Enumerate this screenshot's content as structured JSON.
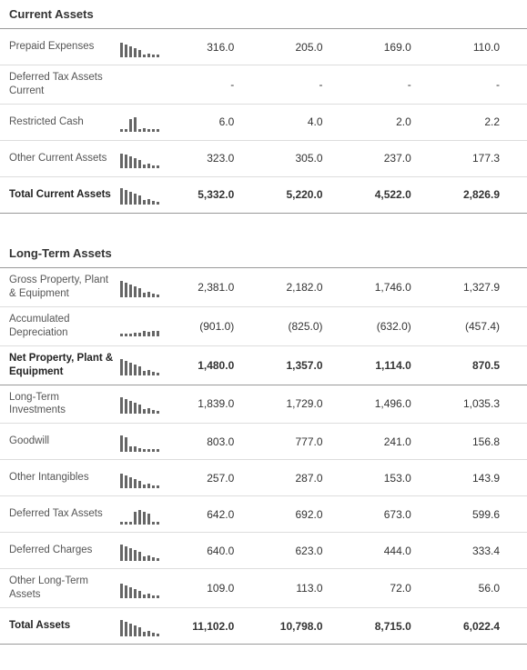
{
  "sections": [
    {
      "title": "Current Assets",
      "rows": [
        {
          "label": "Prepaid Expenses",
          "spark": [
            16,
            14,
            12,
            10,
            8,
            3,
            4,
            2,
            3
          ],
          "values": [
            "316.0",
            "205.0",
            "169.0",
            "110.0"
          ],
          "bold": false
        },
        {
          "label": "Deferred Tax Assets Current",
          "spark": [],
          "values": [
            "-",
            "-",
            "-",
            "-"
          ],
          "bold": false
        },
        {
          "label": "Restricted Cash",
          "spark": [
            3,
            3,
            14,
            16,
            3,
            4,
            3,
            2,
            3
          ],
          "values": [
            "6.0",
            "4.0",
            "2.0",
            "2.2"
          ],
          "bold": false
        },
        {
          "label": "Other Current Assets",
          "spark": [
            16,
            15,
            13,
            11,
            9,
            4,
            5,
            3,
            3
          ],
          "values": [
            "323.0",
            "305.0",
            "237.0",
            "177.3"
          ],
          "bold": false
        },
        {
          "label": "Total Current Assets",
          "spark": [
            18,
            16,
            14,
            12,
            10,
            5,
            6,
            4,
            3
          ],
          "values": [
            "5,332.0",
            "5,220.0",
            "4,522.0",
            "2,826.9"
          ],
          "bold": true
        }
      ]
    },
    {
      "title": "Long-Term Assets",
      "rows": [
        {
          "label": "Gross Property, Plant & Equipment",
          "spark": [
            18,
            16,
            14,
            12,
            10,
            5,
            6,
            4,
            3
          ],
          "values": [
            "2,381.0",
            "2,182.0",
            "1,746.0",
            "1,327.9"
          ],
          "bold": false
        },
        {
          "label": "Accumulated Depreciation",
          "spark": [
            3,
            3,
            3,
            4,
            4,
            6,
            5,
            6,
            6
          ],
          "values": [
            "(901.0)",
            "(825.0)",
            "(632.0)",
            "(457.4)"
          ],
          "bold": false
        },
        {
          "label": "Net Property, Plant & Equipment",
          "spark": [
            18,
            16,
            14,
            12,
            10,
            5,
            6,
            4,
            3
          ],
          "values": [
            "1,480.0",
            "1,357.0",
            "1,114.0",
            "870.5"
          ],
          "bold": true
        },
        {
          "label": "Long-Term Investments",
          "spark": [
            18,
            16,
            14,
            12,
            10,
            5,
            6,
            4,
            3
          ],
          "values": [
            "1,839.0",
            "1,729.0",
            "1,496.0",
            "1,035.3"
          ],
          "bold": false
        },
        {
          "label": "Goodwill",
          "spark": [
            18,
            16,
            6,
            6,
            4,
            3,
            3,
            3,
            3
          ],
          "values": [
            "803.0",
            "777.0",
            "241.0",
            "156.8"
          ],
          "bold": false
        },
        {
          "label": "Other Intangibles",
          "spark": [
            16,
            14,
            12,
            10,
            8,
            4,
            5,
            3,
            3
          ],
          "values": [
            "257.0",
            "287.0",
            "153.0",
            "143.9"
          ],
          "bold": false
        },
        {
          "label": "Deferred Tax Assets",
          "spark": [
            0,
            0,
            0,
            14,
            16,
            14,
            12,
            0,
            0
          ],
          "values": [
            "642.0",
            "692.0",
            "673.0",
            "599.6"
          ],
          "bold": false
        },
        {
          "label": "Deferred Charges",
          "spark": [
            18,
            16,
            14,
            12,
            10,
            5,
            6,
            4,
            3
          ],
          "values": [
            "640.0",
            "623.0",
            "444.0",
            "333.4"
          ],
          "bold": false
        },
        {
          "label": "Other Long-Term Assets",
          "spark": [
            16,
            14,
            12,
            10,
            8,
            4,
            5,
            3,
            3
          ],
          "values": [
            "109.0",
            "113.0",
            "72.0",
            "56.0"
          ],
          "bold": false
        },
        {
          "label": "Total Assets",
          "spark": [
            18,
            16,
            14,
            12,
            10,
            5,
            6,
            4,
            3
          ],
          "values": [
            "11,102.0",
            "10,798.0",
            "8,715.0",
            "6,022.4"
          ],
          "bold": true
        }
      ]
    }
  ],
  "colors": {
    "section_border": "#999999",
    "row_border": "#dddddd",
    "spark_bar": "#666666",
    "text": "#333333",
    "label_text": "#555555",
    "background": "#ffffff"
  }
}
